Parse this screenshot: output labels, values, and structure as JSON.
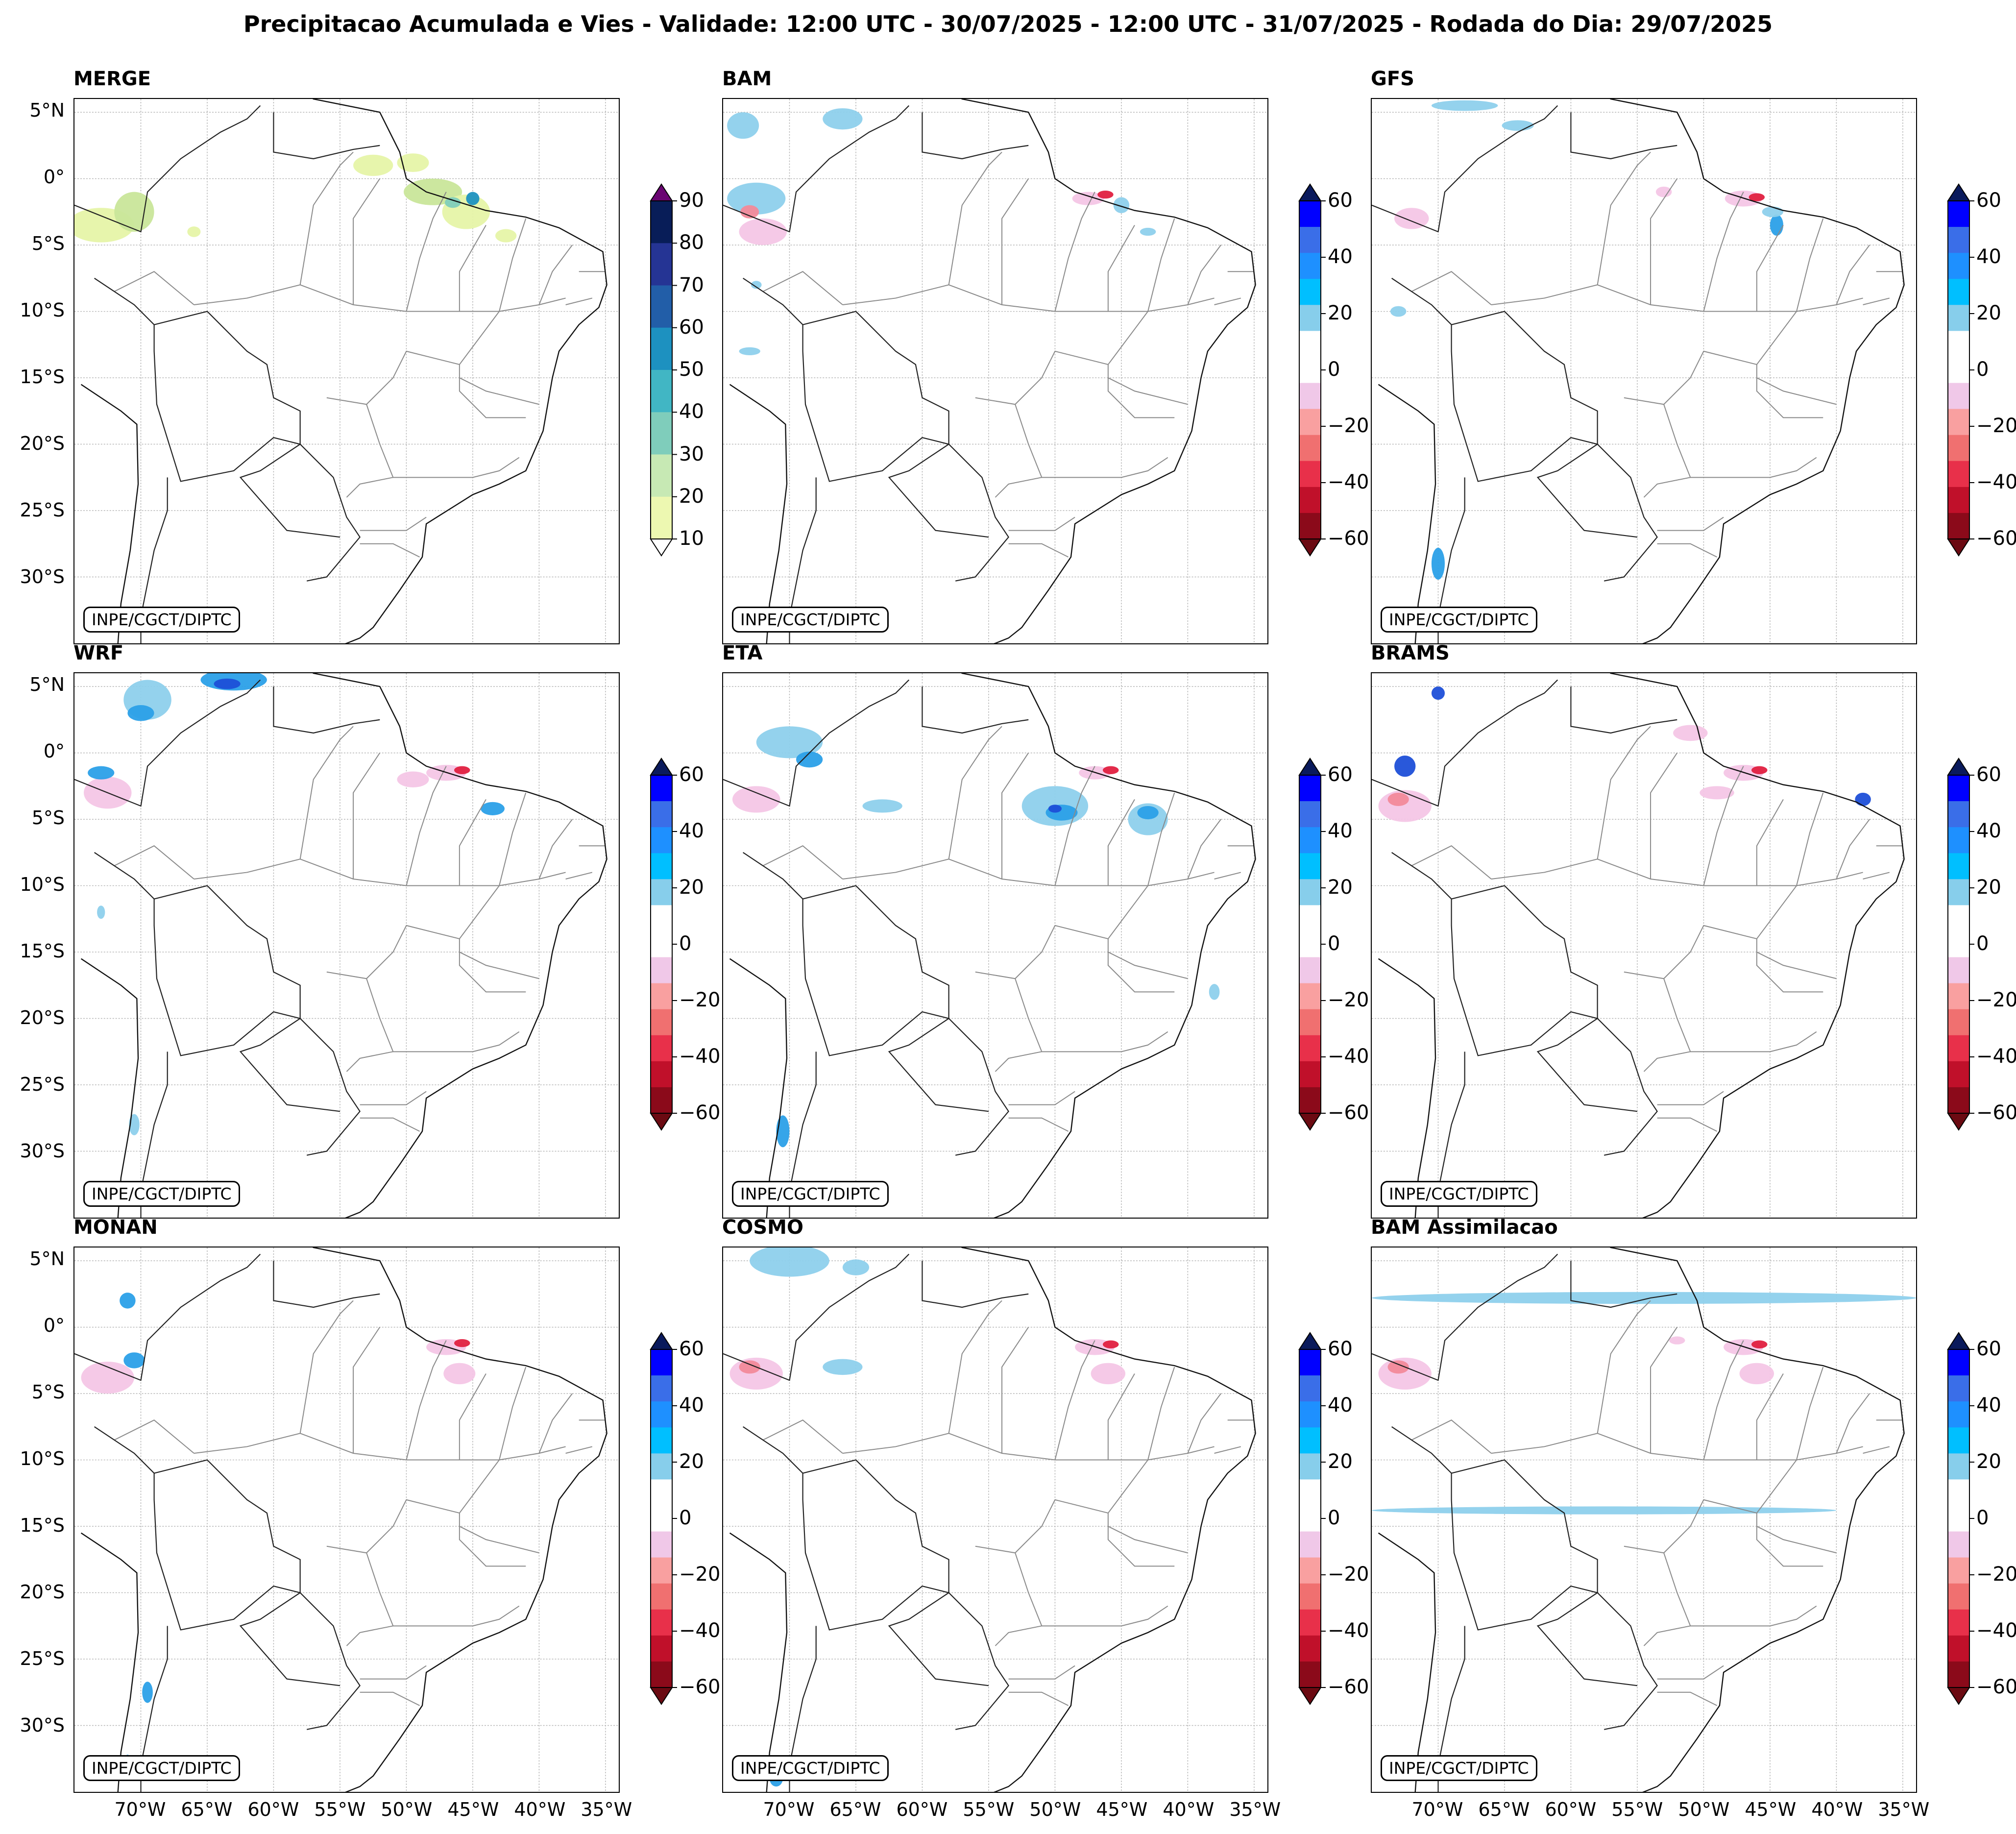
{
  "figure": {
    "title": "Precipitacao Acumulada e Vies - Validade: 12:00 UTC - 30/07/2025 - 12:00 UTC - 31/07/2025 - Rodada do Dia: 29/07/2025",
    "credit": "INPE/CGCT/DIPTC"
  },
  "axes": {
    "lat_labels": [
      "5°N",
      "0°",
      "5°S",
      "10°S",
      "15°S",
      "20°S",
      "25°S",
      "30°S"
    ],
    "lat_values": [
      5,
      0,
      -5,
      -10,
      -15,
      -20,
      -25,
      -30
    ],
    "lon_labels": [
      "70°W",
      "65°W",
      "60°W",
      "55°W",
      "50°W",
      "45°W",
      "40°W",
      "35°W"
    ],
    "lon_values": [
      -70,
      -65,
      -60,
      -55,
      -50,
      -45,
      -40,
      -35
    ],
    "extent": {
      "lon_min": -75,
      "lon_max": -34,
      "lat_min": -35,
      "lat_max": 6
    }
  },
  "colorbars": {
    "precip": {
      "ticks": [
        "10",
        "20",
        "30",
        "40",
        "50",
        "60",
        "70",
        "80",
        "90"
      ],
      "colors": [
        "#edf8b1",
        "#c7e9b4",
        "#7fcdbb",
        "#41b6c4",
        "#1d91c0",
        "#225ea8",
        "#253494",
        "#081d58"
      ],
      "extend_top": "#6a0572",
      "extend_bottom": "#ffffff"
    },
    "bias": {
      "ticks": [
        "60",
        "40",
        "20",
        "0",
        "−20",
        "−40",
        "−60"
      ],
      "colors": [
        "#0000ff",
        "#3a6ee8",
        "#1e90ff",
        "#00bfff",
        "#87ceeb",
        "#ffffff",
        "#ffffff",
        "#f0c8e8",
        "#f9a0a0",
        "#f07070",
        "#e8304a",
        "#c0102a",
        "#8b0a1a"
      ],
      "extend_top": "#0a1a5c",
      "extend_bottom": "#6b0a12"
    }
  },
  "panels": [
    {
      "title": "MERGE",
      "colorbar": "precip"
    },
    {
      "title": "BAM",
      "colorbar": "bias"
    },
    {
      "title": "GFS",
      "colorbar": "bias"
    },
    {
      "title": "WRF",
      "colorbar": "bias"
    },
    {
      "title": "ETA",
      "colorbar": "bias"
    },
    {
      "title": "BRAMS",
      "colorbar": "bias"
    },
    {
      "title": "MONAN",
      "colorbar": "bias"
    },
    {
      "title": "COSMO",
      "colorbar": "bias"
    },
    {
      "title": "BAM Assimilacao",
      "colorbar": "bias"
    }
  ]
}
